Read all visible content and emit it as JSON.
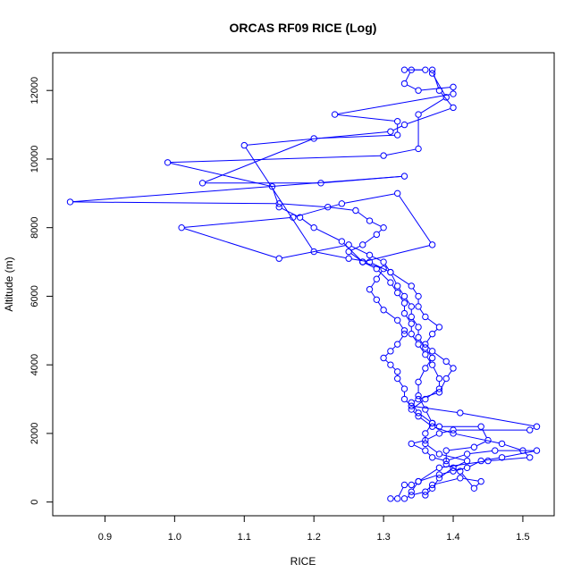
{
  "chart_data": {
    "type": "line",
    "title": "ORCAS RF09 RICE (Log)",
    "xlabel": "RICE",
    "ylabel": "Altitude (m)",
    "xlim": [
      0.825,
      1.545
    ],
    "ylim": [
      -400,
      13100
    ],
    "xticks": [
      0.9,
      1.0,
      1.1,
      1.2,
      1.3,
      1.4,
      1.5
    ],
    "xtick_labels": [
      "0.9",
      "1.0",
      "1.1",
      "1.2",
      "1.3",
      "1.4",
      "1.5"
    ],
    "yticks": [
      0,
      2000,
      4000,
      6000,
      8000,
      10000,
      12000
    ],
    "ytick_labels": [
      "0",
      "2000",
      "4000",
      "6000",
      "8000",
      "10000",
      "12000"
    ],
    "grid": false,
    "legend": "none",
    "color": "#0000ff",
    "series": [
      {
        "points": [
          [
            1.31,
            100
          ],
          [
            1.32,
            100
          ],
          [
            1.33,
            500
          ],
          [
            1.34,
            500
          ],
          [
            1.35,
            600
          ],
          [
            1.38,
            800
          ],
          [
            1.4,
            900
          ],
          [
            1.42,
            1000
          ],
          [
            1.44,
            1200
          ],
          [
            1.47,
            1300
          ],
          [
            1.52,
            1500
          ],
          [
            1.46,
            1500
          ],
          [
            1.42,
            1400
          ],
          [
            1.39,
            1200
          ],
          [
            1.37,
            1300
          ],
          [
            1.36,
            1500
          ],
          [
            1.34,
            1700
          ],
          [
            1.36,
            1800
          ],
          [
            1.38,
            2000
          ],
          [
            1.4,
            2100
          ],
          [
            1.51,
            2100
          ],
          [
            1.52,
            2200
          ],
          [
            1.41,
            2600
          ],
          [
            1.34,
            2800
          ],
          [
            1.33,
            3000
          ],
          [
            1.33,
            3300
          ],
          [
            1.32,
            3600
          ],
          [
            1.32,
            3800
          ],
          [
            1.31,
            4000
          ],
          [
            1.3,
            4200
          ],
          [
            1.31,
            4400
          ],
          [
            1.32,
            4600
          ],
          [
            1.33,
            4900
          ],
          [
            1.33,
            5000
          ],
          [
            1.32,
            5300
          ],
          [
            1.3,
            5600
          ],
          [
            1.29,
            5900
          ],
          [
            1.28,
            6200
          ],
          [
            1.29,
            6500
          ],
          [
            1.3,
            6800
          ],
          [
            1.27,
            7000
          ],
          [
            1.25,
            7300
          ],
          [
            1.27,
            7500
          ],
          [
            1.29,
            7800
          ],
          [
            1.3,
            8000
          ],
          [
            1.28,
            8200
          ],
          [
            1.26,
            8500
          ],
          [
            1.22,
            8600
          ],
          [
            1.15,
            8700
          ],
          [
            0.85,
            8750
          ],
          [
            1.33,
            9500
          ],
          [
            1.21,
            9300
          ],
          [
            1.04,
            9300
          ],
          [
            1.2,
            10600
          ],
          [
            1.32,
            10700
          ],
          [
            1.32,
            11100
          ],
          [
            1.23,
            11300
          ],
          [
            1.4,
            11900
          ],
          [
            1.4,
            12100
          ],
          [
            1.35,
            12000
          ],
          [
            1.33,
            12200
          ],
          [
            1.34,
            12600
          ],
          [
            1.36,
            12600
          ],
          [
            1.33,
            12600
          ]
        ]
      },
      {
        "points": [
          [
            1.33,
            100
          ],
          [
            1.34,
            200
          ],
          [
            1.36,
            300
          ],
          [
            1.37,
            500
          ],
          [
            1.41,
            700
          ],
          [
            1.44,
            600
          ],
          [
            1.43,
            400
          ],
          [
            1.41,
            900
          ],
          [
            1.39,
            1100
          ],
          [
            1.39,
            1500
          ],
          [
            1.43,
            1600
          ],
          [
            1.45,
            1800
          ],
          [
            1.44,
            2200
          ],
          [
            1.38,
            2200
          ],
          [
            1.37,
            2300
          ],
          [
            1.35,
            2600
          ],
          [
            1.34,
            2900
          ],
          [
            1.35,
            3000
          ],
          [
            1.38,
            3200
          ],
          [
            1.39,
            3600
          ],
          [
            1.4,
            3900
          ],
          [
            1.39,
            4100
          ],
          [
            1.37,
            4400
          ],
          [
            1.36,
            4600
          ],
          [
            1.37,
            4900
          ],
          [
            1.38,
            5100
          ],
          [
            1.36,
            5400
          ],
          [
            1.35,
            5700
          ],
          [
            1.35,
            6000
          ],
          [
            1.34,
            6300
          ],
          [
            1.31,
            6700
          ],
          [
            1.28,
            7000
          ],
          [
            1.25,
            7100
          ],
          [
            1.2,
            7300
          ],
          [
            1.1,
            10400
          ],
          [
            1.31,
            10800
          ],
          [
            1.33,
            11000
          ],
          [
            1.4,
            11500
          ],
          [
            1.38,
            12000
          ],
          [
            1.37,
            12600
          ]
        ]
      },
      {
        "points": [
          [
            1.34,
            300
          ],
          [
            1.35,
            600
          ],
          [
            1.38,
            1000
          ],
          [
            1.45,
            1200
          ],
          [
            1.51,
            1300
          ],
          [
            1.5,
            1500
          ],
          [
            1.47,
            1700
          ],
          [
            1.4,
            2000
          ],
          [
            1.37,
            2200
          ],
          [
            1.35,
            2500
          ],
          [
            1.34,
            2700
          ],
          [
            1.36,
            3000
          ],
          [
            1.38,
            3300
          ],
          [
            1.38,
            3600
          ],
          [
            1.37,
            4000
          ],
          [
            1.36,
            4300
          ],
          [
            1.35,
            4600
          ],
          [
            1.34,
            4900
          ],
          [
            1.34,
            5200
          ],
          [
            1.33,
            5500
          ],
          [
            1.33,
            5800
          ],
          [
            1.32,
            6100
          ],
          [
            1.31,
            6400
          ],
          [
            1.29,
            6800
          ],
          [
            1.27,
            7000
          ],
          [
            1.24,
            7600
          ],
          [
            1.2,
            8000
          ],
          [
            1.18,
            8300
          ],
          [
            1.15,
            8600
          ],
          [
            1.14,
            9200
          ],
          [
            0.99,
            9900
          ],
          [
            1.3,
            10100
          ],
          [
            1.35,
            10300
          ],
          [
            1.35,
            11300
          ],
          [
            1.39,
            11800
          ],
          [
            1.37,
            12500
          ]
        ]
      },
      {
        "points": [
          [
            1.36,
            200
          ],
          [
            1.37,
            400
          ],
          [
            1.38,
            700
          ],
          [
            1.4,
            1000
          ],
          [
            1.42,
            1200
          ],
          [
            1.38,
            1400
          ],
          [
            1.36,
            1700
          ],
          [
            1.36,
            2000
          ],
          [
            1.37,
            2300
          ],
          [
            1.36,
            2700
          ],
          [
            1.35,
            3100
          ],
          [
            1.35,
            3500
          ],
          [
            1.36,
            3900
          ],
          [
            1.37,
            4200
          ],
          [
            1.36,
            4500
          ],
          [
            1.35,
            4800
          ],
          [
            1.35,
            5100
          ],
          [
            1.34,
            5400
          ],
          [
            1.34,
            5700
          ],
          [
            1.33,
            6000
          ],
          [
            1.32,
            6300
          ],
          [
            1.31,
            6700
          ],
          [
            1.3,
            7000
          ],
          [
            1.28,
            7200
          ],
          [
            1.25,
            7500
          ],
          [
            1.15,
            7100
          ],
          [
            1.01,
            8000
          ],
          [
            1.17,
            8300
          ],
          [
            1.24,
            8700
          ],
          [
            1.32,
            9000
          ],
          [
            1.37,
            7500
          ],
          [
            1.27,
            7000
          ]
        ]
      }
    ]
  }
}
